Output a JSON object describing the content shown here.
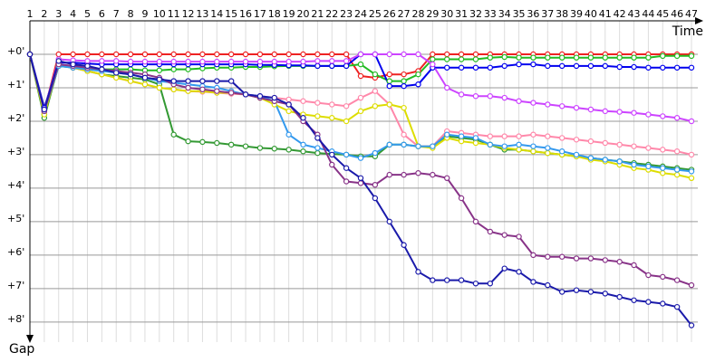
{
  "chart_data": {
    "type": "line",
    "x_label": "Time",
    "y_label": "Gap",
    "x": [
      1,
      2,
      3,
      4,
      5,
      6,
      7,
      8,
      9,
      10,
      11,
      12,
      13,
      14,
      15,
      16,
      17,
      18,
      19,
      20,
      21,
      22,
      23,
      24,
      25,
      26,
      27,
      28,
      29,
      30,
      31,
      32,
      33,
      34,
      35,
      36,
      37,
      38,
      39,
      40,
      41,
      42,
      43,
      44,
      45,
      46,
      47
    ],
    "xlim": [
      1,
      47
    ],
    "xticks": [
      1,
      2,
      3,
      4,
      5,
      6,
      7,
      8,
      9,
      10,
      11,
      12,
      13,
      14,
      15,
      16,
      17,
      18,
      19,
      20,
      21,
      22,
      23,
      24,
      25,
      26,
      27,
      28,
      29,
      30,
      31,
      32,
      33,
      34,
      35,
      36,
      37,
      38,
      39,
      40,
      41,
      42,
      43,
      44,
      45,
      46,
      47
    ],
    "ylim": [
      -1,
      8.6
    ],
    "y_inverted": true,
    "yticks": [
      {
        "value": 0,
        "label": "+0'"
      },
      {
        "value": 1,
        "label": "+1'"
      },
      {
        "value": 2,
        "label": "+2'"
      },
      {
        "value": 3,
        "label": "+3'"
      },
      {
        "value": 4,
        "label": "+4'"
      },
      {
        "value": 5,
        "label": "+5'"
      },
      {
        "value": 6,
        "label": "+6'"
      },
      {
        "value": 7,
        "label": "+7'"
      },
      {
        "value": 8,
        "label": "+8'"
      }
    ],
    "grid": true,
    "series": [
      {
        "color": "#ee2222",
        "values": [
          0,
          1.7,
          0,
          0,
          0,
          0,
          0,
          0,
          0,
          0,
          0,
          0,
          0,
          0,
          0,
          0,
          0,
          0,
          0,
          0,
          0,
          0,
          0,
          0.65,
          0.7,
          0.6,
          0.6,
          0.5,
          0,
          0,
          0,
          0,
          0,
          0,
          0,
          0,
          0,
          0,
          0,
          0,
          0,
          0,
          0,
          0,
          0,
          0,
          0
        ]
      },
      {
        "color": "#22bb22",
        "values": [
          0,
          1.8,
          0.35,
          0.4,
          0.42,
          0.45,
          0.45,
          0.45,
          0.48,
          0.48,
          0.45,
          0.45,
          0.42,
          0.4,
          0.4,
          0.38,
          0.38,
          0.36,
          0.35,
          0.35,
          0.35,
          0.35,
          0.35,
          0.3,
          0.6,
          0.8,
          0.8,
          0.6,
          0.15,
          0.15,
          0.15,
          0.15,
          0.1,
          0.08,
          0.1,
          0.1,
          0.1,
          0.1,
          0.1,
          0.1,
          0.1,
          0.1,
          0.1,
          0.1,
          0.05,
          0.05,
          0.05
        ]
      },
      {
        "color": "#339933",
        "values": [
          0,
          1.9,
          0.3,
          0.4,
          0.5,
          0.6,
          0.65,
          0.7,
          0.75,
          0.9,
          2.4,
          2.6,
          2.62,
          2.65,
          2.7,
          2.75,
          2.8,
          2.82,
          2.85,
          2.9,
          2.95,
          2.98,
          3.0,
          3.05,
          3.05,
          2.7,
          2.7,
          2.75,
          2.75,
          2.45,
          2.5,
          2.55,
          2.7,
          2.85,
          2.85,
          2.9,
          2.95,
          3.0,
          3.05,
          3.1,
          3.15,
          3.2,
          3.25,
          3.3,
          3.35,
          3.4,
          3.45
        ]
      },
      {
        "color": "#0000ee",
        "values": [
          0,
          1.6,
          0.25,
          0.25,
          0.28,
          0.3,
          0.3,
          0.3,
          0.3,
          0.3,
          0.3,
          0.3,
          0.3,
          0.3,
          0.3,
          0.3,
          0.32,
          0.32,
          0.33,
          0.33,
          0.35,
          0.35,
          0.35,
          0,
          0,
          0.95,
          0.95,
          0.9,
          0.4,
          0.4,
          0.4,
          0.4,
          0.4,
          0.35,
          0.3,
          0.3,
          0.35,
          0.35,
          0.35,
          0.35,
          0.35,
          0.38,
          0.38,
          0.4,
          0.4,
          0.4,
          0.4
        ]
      },
      {
        "color": "#cc44ff",
        "values": [
          0,
          1.65,
          0.15,
          0.18,
          0.2,
          0.2,
          0.2,
          0.22,
          0.22,
          0.22,
          0.22,
          0.22,
          0.22,
          0.22,
          0.22,
          0.22,
          0.22,
          0.22,
          0.22,
          0.22,
          0.2,
          0.2,
          0.2,
          0,
          0,
          0,
          0,
          0,
          0.3,
          1.0,
          1.2,
          1.25,
          1.25,
          1.3,
          1.4,
          1.45,
          1.5,
          1.55,
          1.6,
          1.65,
          1.7,
          1.72,
          1.75,
          1.8,
          1.85,
          1.9,
          2.0
        ]
      },
      {
        "color": "#ff88aa",
        "values": [
          0,
          1.75,
          0.3,
          0.4,
          0.5,
          0.6,
          0.7,
          0.8,
          0.9,
          1.0,
          1.05,
          1.1,
          1.12,
          1.15,
          1.18,
          1.2,
          1.25,
          1.3,
          1.35,
          1.4,
          1.45,
          1.5,
          1.55,
          1.3,
          1.1,
          1.5,
          2.4,
          2.75,
          2.75,
          2.3,
          2.35,
          2.4,
          2.45,
          2.45,
          2.45,
          2.4,
          2.45,
          2.5,
          2.55,
          2.6,
          2.65,
          2.7,
          2.75,
          2.8,
          2.85,
          2.9,
          3.0
        ]
      },
      {
        "color": "#dddd00",
        "values": [
          0,
          1.8,
          0.3,
          0.4,
          0.5,
          0.6,
          0.7,
          0.8,
          0.9,
          1.0,
          1.05,
          1.1,
          1.1,
          1.15,
          1.15,
          1.2,
          1.3,
          1.5,
          1.7,
          1.8,
          1.85,
          1.9,
          2.0,
          1.7,
          1.55,
          1.5,
          1.6,
          2.75,
          2.8,
          2.5,
          2.6,
          2.65,
          2.7,
          2.8,
          2.85,
          2.9,
          2.95,
          3.0,
          3.05,
          3.15,
          3.2,
          3.3,
          3.4,
          3.45,
          3.55,
          3.6,
          3.7
        ]
      },
      {
        "color": "#3399ee",
        "values": [
          0,
          1.7,
          0.35,
          0.4,
          0.45,
          0.5,
          0.55,
          0.6,
          0.7,
          0.8,
          0.85,
          0.9,
          0.95,
          1.0,
          1.1,
          1.2,
          1.25,
          1.4,
          2.4,
          2.7,
          2.8,
          2.9,
          3.0,
          3.1,
          2.95,
          2.7,
          2.7,
          2.75,
          2.75,
          2.4,
          2.45,
          2.5,
          2.7,
          2.75,
          2.7,
          2.75,
          2.8,
          2.9,
          3.0,
          3.1,
          3.15,
          3.2,
          3.3,
          3.35,
          3.4,
          3.45,
          3.5
        ]
      },
      {
        "color": "#883388",
        "values": [
          0,
          1.7,
          0.3,
          0.35,
          0.4,
          0.45,
          0.5,
          0.55,
          0.6,
          0.7,
          0.9,
          1.0,
          1.05,
          1.1,
          1.15,
          1.2,
          1.3,
          1.4,
          1.5,
          2.0,
          2.4,
          3.3,
          3.8,
          3.85,
          3.9,
          3.6,
          3.6,
          3.55,
          3.6,
          3.7,
          4.3,
          5.0,
          5.3,
          5.4,
          5.45,
          6.0,
          6.05,
          6.05,
          6.1,
          6.1,
          6.15,
          6.2,
          6.3,
          6.6,
          6.65,
          6.75,
          6.9
        ]
      },
      {
        "color": "#1a1aaa",
        "values": [
          0,
          1.65,
          0.2,
          0.3,
          0.35,
          0.45,
          0.55,
          0.6,
          0.7,
          0.75,
          0.8,
          0.8,
          0.8,
          0.8,
          0.8,
          1.2,
          1.25,
          1.3,
          1.5,
          1.9,
          2.5,
          3.0,
          3.4,
          3.7,
          4.3,
          5.0,
          5.7,
          6.5,
          6.75,
          6.75,
          6.75,
          6.85,
          6.85,
          6.4,
          6.5,
          6.8,
          6.9,
          7.1,
          7.05,
          7.1,
          7.15,
          7.25,
          7.35,
          7.4,
          7.45,
          7.55,
          8.1
        ]
      }
    ]
  }
}
